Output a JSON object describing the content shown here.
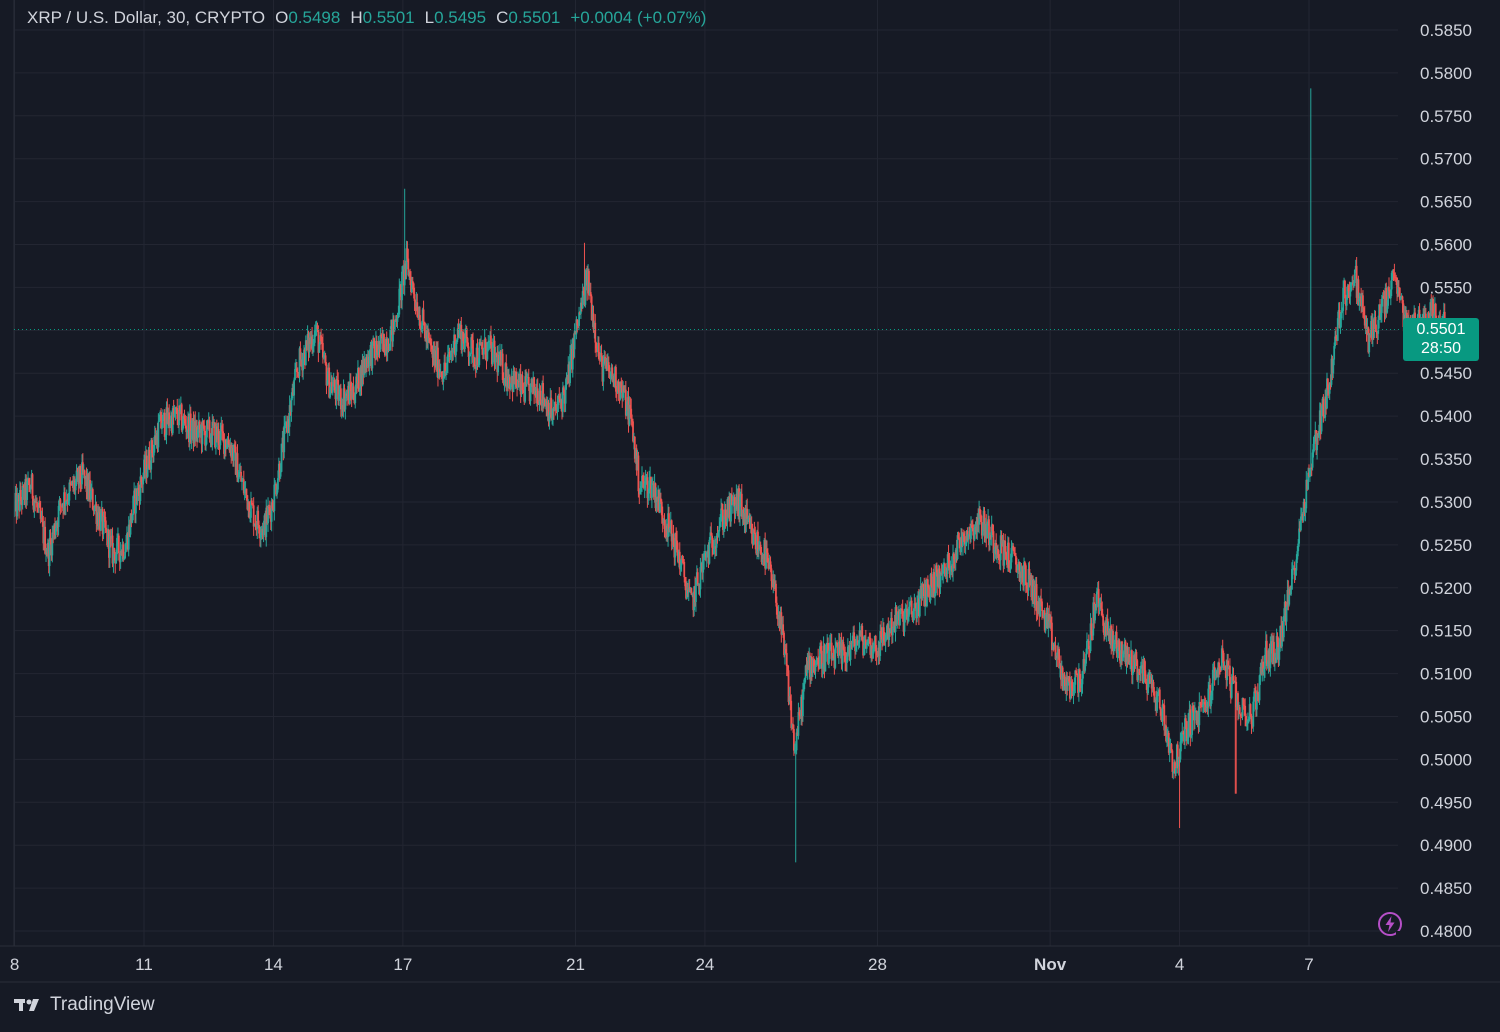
{
  "legend": {
    "symbol": "XRP / U.S. Dollar, 30, CRYPTO",
    "open_label": "O",
    "open": "0.5498",
    "high_label": "H",
    "high": "0.5501",
    "low_label": "L",
    "low": "0.5495",
    "close_label": "C",
    "close": "0.5501",
    "change": "+0.0004 (+0.07%)"
  },
  "price_tag": {
    "price": "0.5501",
    "countdown": "28:50"
  },
  "brand": {
    "name": "TradingView",
    "icon": "tradingview-logo-icon"
  },
  "alert_icon": "lightning-icon",
  "colors": {
    "background": "#161a25",
    "up": "#26a69a",
    "down": "#ef5350",
    "accent": "#089981",
    "grid": "#232632",
    "text": "#d1d4dc"
  },
  "chart_data": {
    "type": "candlestick",
    "title": "XRP / U.S. Dollar, 30, CRYPTO",
    "interval": "30",
    "ylim": [
      0.48,
      0.585
    ],
    "yticks": [
      "0.5850",
      "0.5800",
      "0.5750",
      "0.5700",
      "0.5650",
      "0.5600",
      "0.5550",
      "0.5500",
      "0.5450",
      "0.5400",
      "0.5350",
      "0.5300",
      "0.5250",
      "0.5200",
      "0.5150",
      "0.5100",
      "0.5050",
      "0.5000",
      "0.4950",
      "0.4900",
      "0.4850",
      "0.4800"
    ],
    "xticks": [
      {
        "label": "8",
        "day": 8
      },
      {
        "label": "11",
        "day": 11
      },
      {
        "label": "14",
        "day": 14
      },
      {
        "label": "17",
        "day": 17
      },
      {
        "label": "21",
        "day": 21
      },
      {
        "label": "24",
        "day": 24
      },
      {
        "label": "28",
        "day": 28
      },
      {
        "label": "Nov",
        "day": 32
      },
      {
        "label": "4",
        "day": 35
      },
      {
        "label": "7",
        "day": 38
      }
    ],
    "last_price": 0.5501,
    "grid": true,
    "price_path": [
      [
        8.0,
        0.529
      ],
      [
        8.4,
        0.532
      ],
      [
        8.8,
        0.524
      ],
      [
        9.1,
        0.53
      ],
      [
        9.6,
        0.533
      ],
      [
        10.0,
        0.528
      ],
      [
        10.3,
        0.524
      ],
      [
        10.6,
        0.525
      ],
      [
        10.8,
        0.53
      ],
      [
        11.0,
        0.533
      ],
      [
        11.4,
        0.539
      ],
      [
        11.8,
        0.54
      ],
      [
        12.2,
        0.538
      ],
      [
        12.6,
        0.538
      ],
      [
        13.0,
        0.537
      ],
      [
        13.3,
        0.532
      ],
      [
        13.6,
        0.528
      ],
      [
        13.8,
        0.527
      ],
      [
        14.0,
        0.53
      ],
      [
        14.3,
        0.538
      ],
      [
        14.6,
        0.546
      ],
      [
        15.0,
        0.55
      ],
      [
        15.3,
        0.544
      ],
      [
        15.6,
        0.542
      ],
      [
        15.9,
        0.543
      ],
      [
        16.2,
        0.547
      ],
      [
        16.5,
        0.548
      ],
      [
        16.8,
        0.55
      ],
      [
        17.1,
        0.558
      ],
      [
        17.4,
        0.552
      ],
      [
        17.7,
        0.547
      ],
      [
        18.0,
        0.545
      ],
      [
        18.3,
        0.55
      ],
      [
        18.7,
        0.547
      ],
      [
        19.0,
        0.548
      ],
      [
        19.4,
        0.545
      ],
      [
        19.8,
        0.543
      ],
      [
        20.2,
        0.543
      ],
      [
        20.5,
        0.54
      ],
      [
        20.8,
        0.543
      ],
      [
        21.0,
        0.549
      ],
      [
        21.3,
        0.556
      ],
      [
        21.6,
        0.546
      ],
      [
        22.0,
        0.544
      ],
      [
        22.3,
        0.54
      ],
      [
        22.5,
        0.532
      ],
      [
        22.8,
        0.532
      ],
      [
        23.1,
        0.528
      ],
      [
        23.4,
        0.524
      ],
      [
        23.7,
        0.518
      ],
      [
        24.0,
        0.523
      ],
      [
        24.4,
        0.528
      ],
      [
        24.8,
        0.53
      ],
      [
        25.1,
        0.526
      ],
      [
        25.4,
        0.524
      ],
      [
        25.7,
        0.518
      ],
      [
        25.9,
        0.511
      ],
      [
        26.1,
        0.501
      ],
      [
        26.4,
        0.511
      ],
      [
        26.8,
        0.512
      ],
      [
        27.2,
        0.512
      ],
      [
        27.6,
        0.514
      ],
      [
        28.0,
        0.513
      ],
      [
        28.4,
        0.516
      ],
      [
        28.8,
        0.517
      ],
      [
        29.2,
        0.52
      ],
      [
        29.6,
        0.522
      ],
      [
        30.0,
        0.526
      ],
      [
        30.4,
        0.528
      ],
      [
        30.8,
        0.525
      ],
      [
        31.2,
        0.523
      ],
      [
        31.6,
        0.52
      ],
      [
        32.0,
        0.515
      ],
      [
        32.4,
        0.508
      ],
      [
        32.8,
        0.51
      ],
      [
        33.1,
        0.519
      ],
      [
        33.4,
        0.514
      ],
      [
        33.8,
        0.512
      ],
      [
        34.2,
        0.51
      ],
      [
        34.6,
        0.506
      ],
      [
        34.9,
        0.499
      ],
      [
        35.2,
        0.504
      ],
      [
        35.6,
        0.506
      ],
      [
        36.0,
        0.512
      ],
      [
        36.4,
        0.506
      ],
      [
        36.7,
        0.505
      ],
      [
        37.0,
        0.512
      ],
      [
        37.3,
        0.513
      ],
      [
        37.6,
        0.52
      ],
      [
        37.9,
        0.53
      ],
      [
        38.2,
        0.538
      ],
      [
        38.5,
        0.544
      ],
      [
        38.8,
        0.554
      ],
      [
        39.1,
        0.556
      ],
      [
        39.4,
        0.549
      ],
      [
        39.7,
        0.552
      ],
      [
        40.0,
        0.556
      ],
      [
        40.3,
        0.55
      ],
      [
        40.6,
        0.551
      ],
      [
        40.9,
        0.552
      ],
      [
        41.2,
        0.5501
      ]
    ],
    "notable_wicks": [
      {
        "day": 17.05,
        "high": 0.5665
      },
      {
        "day": 21.2,
        "high": 0.5602
      },
      {
        "day": 26.1,
        "low": 0.488
      },
      {
        "day": 35.0,
        "low": 0.492
      },
      {
        "day": 36.3,
        "low": 0.496
      },
      {
        "day": 38.05,
        "high": 0.5782
      }
    ]
  }
}
